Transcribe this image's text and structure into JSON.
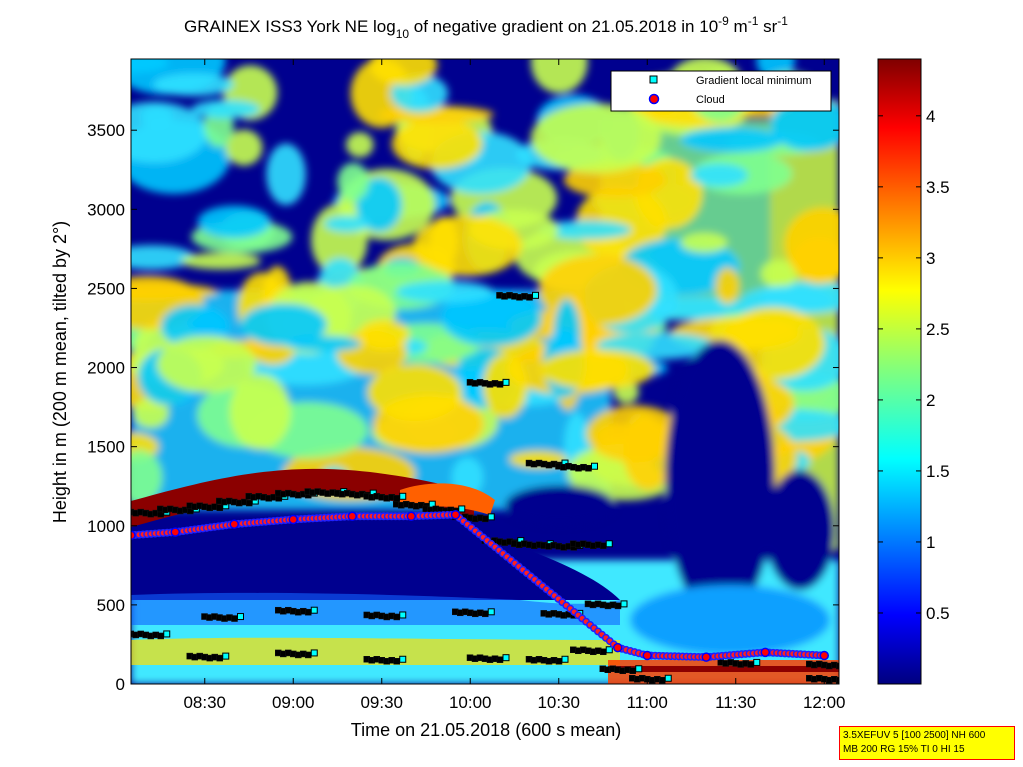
{
  "chart_data": {
    "type": "heatmap",
    "title": {
      "pre": "GRAINEX ISS3 York NE log",
      "sub": "10",
      "mid": " of negative gradient on 21.05.2018 in 10",
      "sup1": "-9",
      "mid2": " m",
      "sup2": "-1",
      "mid3": " sr",
      "sup3": "-1"
    },
    "xlabel": "Time on 21.05.2018 (600 s mean)",
    "ylabel": "Height in m (200 m mean, tilted by 2°)",
    "xlim": [
      "08:05",
      "12:05"
    ],
    "ylim": [
      0,
      3950
    ],
    "x_ticks": [
      "08:30",
      "09:00",
      "09:30",
      "10:00",
      "10:30",
      "11:00",
      "11:30",
      "12:00"
    ],
    "y_ticks": [
      0,
      500,
      1000,
      1500,
      2000,
      2500,
      3000,
      3500
    ],
    "colorbar": {
      "range": [
        0,
        4.4
      ],
      "ticks": [
        "0.5",
        "1",
        "1.5",
        "2",
        "2.5",
        "3",
        "3.5",
        "4"
      ],
      "colormap": "jet"
    },
    "legend": {
      "placement": "top-right",
      "entries": [
        {
          "label": "Gradient local minimum",
          "marker": "square",
          "color": "#00ffff"
        },
        {
          "label": "Cloud",
          "marker": "circle",
          "color": "#ff0000"
        }
      ]
    },
    "series": [
      {
        "name": "Gradient local minimum",
        "points": [
          [
            "08:10",
            1080
          ],
          [
            "08:20",
            1100
          ],
          [
            "08:30",
            1120
          ],
          [
            "08:40",
            1150
          ],
          [
            "08:50",
            1180
          ],
          [
            "09:00",
            1200
          ],
          [
            "09:10",
            1210
          ],
          [
            "09:20",
            1200
          ],
          [
            "09:30",
            1180
          ],
          [
            "09:40",
            1130
          ],
          [
            "09:50",
            1100
          ],
          [
            "10:00",
            1050
          ],
          [
            "10:10",
            900
          ],
          [
            "10:20",
            880
          ],
          [
            "10:30",
            870
          ],
          [
            "10:40",
            880
          ],
          [
            "10:15",
            2450
          ],
          [
            "10:25",
            1390
          ],
          [
            "10:35",
            1370
          ],
          [
            "10:05",
            1900
          ],
          [
            "08:35",
            420
          ],
          [
            "09:00",
            460
          ],
          [
            "09:30",
            430
          ],
          [
            "10:00",
            450
          ],
          [
            "10:30",
            440
          ],
          [
            "10:45",
            500
          ],
          [
            "08:10",
            310
          ],
          [
            "08:30",
            170
          ],
          [
            "09:00",
            190
          ],
          [
            "09:30",
            150
          ],
          [
            "10:05",
            160
          ],
          [
            "10:25",
            150
          ],
          [
            "10:40",
            210
          ],
          [
            "10:50",
            90
          ],
          [
            "11:30",
            130
          ],
          [
            "12:00",
            120
          ],
          [
            "11:00",
            30
          ],
          [
            "12:00",
            30
          ]
        ]
      },
      {
        "name": "Cloud",
        "points": [
          [
            "08:05",
            940
          ],
          [
            "08:20",
            960
          ],
          [
            "08:40",
            1010
          ],
          [
            "09:00",
            1040
          ],
          [
            "09:20",
            1060
          ],
          [
            "09:40",
            1060
          ],
          [
            "09:55",
            1070
          ],
          [
            "10:50",
            230
          ],
          [
            "11:00",
            180
          ],
          [
            "11:20",
            170
          ],
          [
            "11:40",
            200
          ],
          [
            "12:00",
            180
          ]
        ]
      }
    ],
    "annotation": {
      "line1": "3.5XEFUV 5 [100 2500] NH 600",
      "line2": "MB 200 RG 15% TI 0 HI 15"
    }
  }
}
